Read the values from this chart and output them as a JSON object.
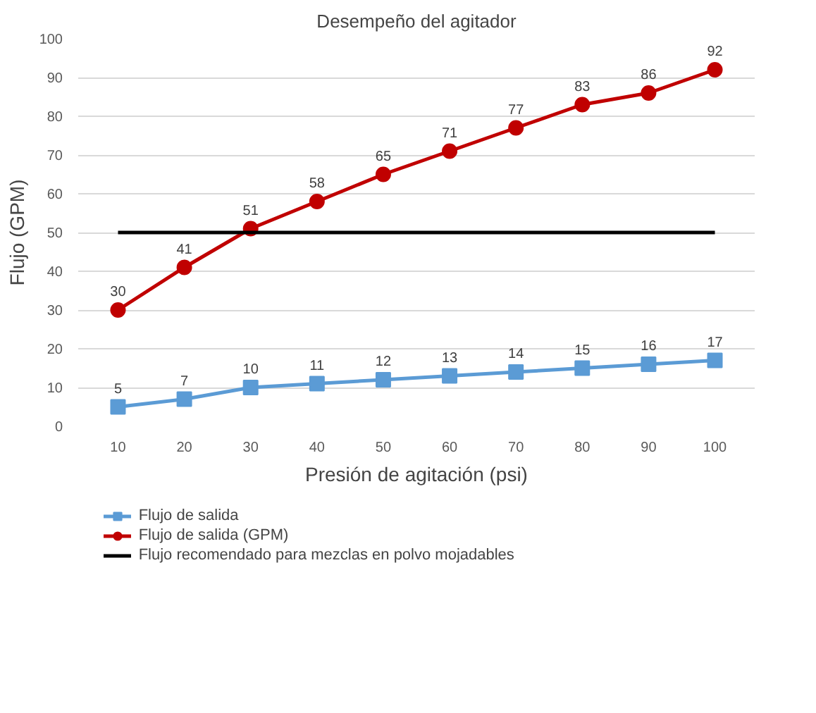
{
  "chart_data": {
    "type": "line",
    "title": "Desempeño del agitador",
    "xlabel": "Presión de agitación (psi)",
    "ylabel": "Flujo (GPM)",
    "categories": [
      "10",
      "20",
      "30",
      "40",
      "50",
      "60",
      "70",
      "80",
      "90",
      "100"
    ],
    "ylim": [
      0,
      100
    ],
    "yticks": [
      0,
      10,
      20,
      30,
      40,
      50,
      60,
      70,
      80,
      90,
      100
    ],
    "grid": "y",
    "legend": "bottom",
    "series": [
      {
        "name": "Flujo de salida",
        "color": "#5b9bd5",
        "marker": "square",
        "values": [
          5,
          7,
          10,
          11,
          12,
          13,
          14,
          15,
          16,
          17
        ],
        "value_labels": [
          "5",
          "7",
          "10",
          "11",
          "12",
          "13",
          "14",
          "15",
          "16",
          "17"
        ]
      },
      {
        "name": "Flujo de salida (GPM)",
        "color": "#c00000",
        "marker": "circle",
        "values": [
          30,
          41,
          51,
          58,
          65,
          71,
          77,
          83,
          86,
          92
        ],
        "value_labels": [
          "30",
          "41",
          "51",
          "58",
          "65",
          "71",
          "77",
          "83",
          "86",
          "92"
        ]
      },
      {
        "name": "Flujo recomendado para mezclas en polvo mojadables",
        "color": "#000000",
        "marker": "none",
        "values": [
          50,
          50,
          50,
          50,
          50,
          50,
          50,
          50,
          50,
          50
        ]
      }
    ]
  }
}
